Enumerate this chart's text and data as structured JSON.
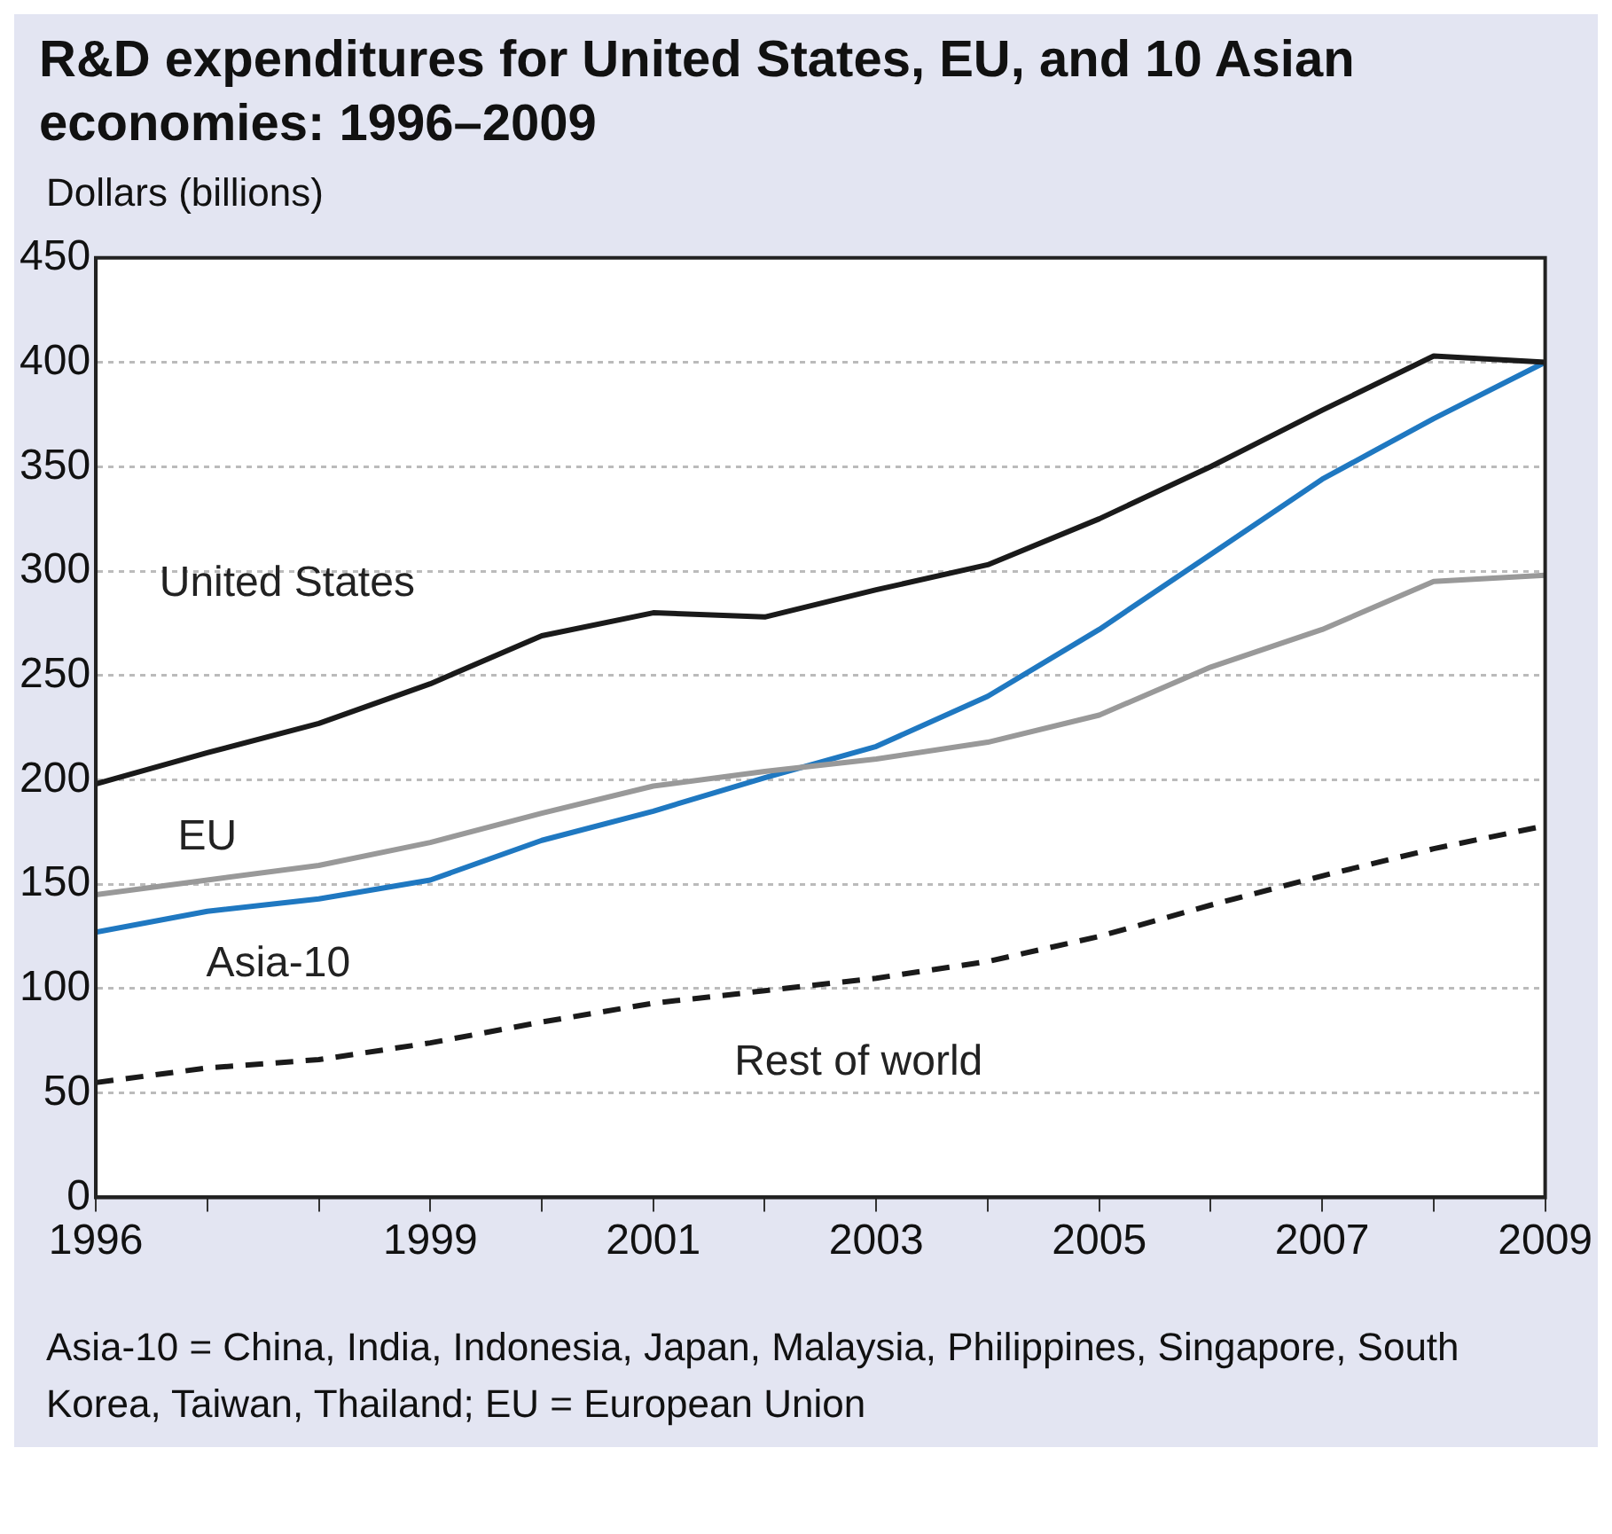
{
  "chart_data": {
    "type": "line",
    "title": "R&D expenditures for United States, EU, and 10 Asian economies: 1996–2009",
    "ylabel": "Dollars (billions)",
    "x": [
      1996,
      1997,
      1998,
      1999,
      2000,
      2001,
      2002,
      2003,
      2004,
      2005,
      2006,
      2007,
      2008,
      2009
    ],
    "series": [
      {
        "name": "United States",
        "color": "#1a1a1a",
        "line_style": "solid",
        "values": [
          198,
          213,
          227,
          246,
          269,
          280,
          278,
          291,
          303,
          325,
          350,
          377,
          403,
          400
        ]
      },
      {
        "name": "EU",
        "color": "#999999",
        "line_style": "solid",
        "values": [
          145,
          152,
          159,
          170,
          184,
          197,
          204,
          210,
          218,
          231,
          254,
          272,
          295,
          298
        ]
      },
      {
        "name": "Asia-10",
        "color": "#1f78c1",
        "line_style": "solid",
        "values": [
          127,
          137,
          143,
          152,
          171,
          185,
          201,
          216,
          240,
          272,
          308,
          344,
          373,
          400
        ]
      },
      {
        "name": "Rest of world",
        "color": "#1a1a1a",
        "line_style": "dashed",
        "values": [
          55,
          62,
          66,
          74,
          84,
          93,
          99,
          105,
          113,
          125,
          140,
          154,
          167,
          178
        ]
      }
    ],
    "xlim": [
      1996,
      2009
    ],
    "xticks": [
      1996,
      {
        "value": 1997,
        "label": null
      },
      {
        "value": 1998,
        "label": null
      },
      1999,
      {
        "value": 2000,
        "label": null
      },
      2001,
      {
        "value": 2002,
        "label": null
      },
      2003,
      {
        "value": 2004,
        "label": null
      },
      2005,
      {
        "value": 2006,
        "label": null
      },
      2007,
      {
        "value": 2008,
        "label": null
      },
      2009
    ],
    "ylim": [
      0,
      450
    ],
    "yticks": [
      0,
      50,
      100,
      150,
      200,
      250,
      300,
      350,
      400,
      450
    ],
    "grid": "y",
    "legend": false,
    "marker": "none",
    "annotations": [
      "Asia-10 = China, India, Indonesia, Japan, Malaysia, Philippines, Singapore, South Korea, Taiwan, Thailand; EU = European Union"
    ]
  }
}
